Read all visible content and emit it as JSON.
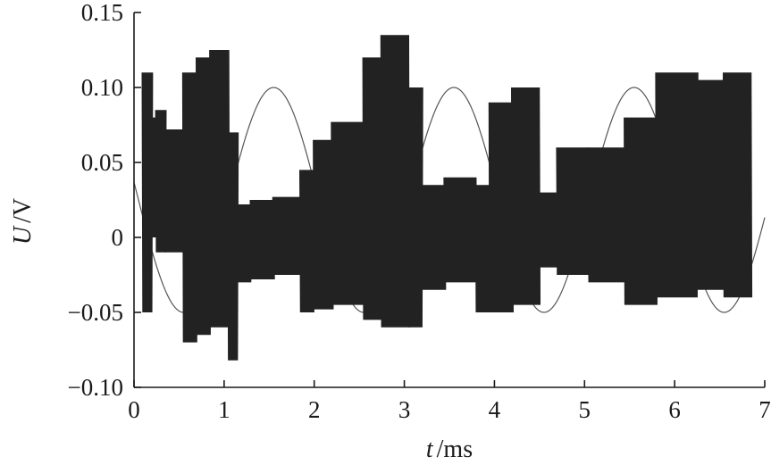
{
  "chart_data": {
    "type": "line",
    "title": "",
    "xlabel": {
      "variable": "t",
      "unit": "/ms"
    },
    "ylabel": {
      "variable": "U",
      "unit": "/V"
    },
    "xlim": [
      0,
      7
    ],
    "ylim": [
      -0.1,
      0.15
    ],
    "x_ticks": [
      0,
      1,
      2,
      3,
      4,
      5,
      6,
      7
    ],
    "x_tick_labels": [
      "0",
      "1",
      "2",
      "3",
      "4",
      "5",
      "6",
      "7"
    ],
    "y_ticks": [
      -0.1,
      -0.05,
      0,
      0.05,
      0.1,
      0.15
    ],
    "y_tick_labels": [
      "−0.10",
      "−0.05",
      "0",
      "0.05",
      "0.10",
      "0.15"
    ],
    "grid": false,
    "legend": "none",
    "colors": {
      "thin": "#555555",
      "thick": "#222222",
      "axis": "#1a1a1a"
    },
    "series": [
      {
        "style": "thin",
        "description_of_shape": "sinusoid, period 2 ms",
        "amplitude": 0.075,
        "offset": 0.025,
        "period_ms": 2.0,
        "peak_at_ms": 1.55,
        "x_range": [
          0,
          7
        ]
      },
      {
        "style": "thick-oscillation",
        "segments": [
          {
            "x0": 0.1,
            "x1": 0.2,
            "min": -0.05,
            "max": 0.11
          },
          {
            "x0": 0.2,
            "x1": 0.3,
            "min": 0.0,
            "max": 0.08
          },
          {
            "x0": 0.25,
            "x1": 0.35,
            "min": -0.01,
            "max": 0.085
          },
          {
            "x0": 0.35,
            "x1": 0.55,
            "min": -0.01,
            "max": 0.072
          },
          {
            "x0": 0.55,
            "x1": 0.7,
            "min": -0.07,
            "max": 0.11
          },
          {
            "x0": 0.7,
            "x1": 0.85,
            "min": -0.065,
            "max": 0.12
          },
          {
            "x0": 0.85,
            "x1": 1.05,
            "min": -0.06,
            "max": 0.125
          },
          {
            "x0": 1.05,
            "x1": 1.15,
            "min": -0.082,
            "max": 0.07
          },
          {
            "x0": 1.15,
            "x1": 1.3,
            "min": -0.03,
            "max": 0.022
          },
          {
            "x0": 1.3,
            "x1": 1.55,
            "min": -0.028,
            "max": 0.025
          },
          {
            "x0": 1.55,
            "x1": 1.85,
            "min": -0.025,
            "max": 0.027
          },
          {
            "x0": 1.85,
            "x1": 2.0,
            "min": -0.05,
            "max": 0.045
          },
          {
            "x0": 2.0,
            "x1": 2.2,
            "min": -0.048,
            "max": 0.065
          },
          {
            "x0": 2.2,
            "x1": 2.55,
            "min": -0.045,
            "max": 0.077
          },
          {
            "x0": 2.55,
            "x1": 2.75,
            "min": -0.055,
            "max": 0.12
          },
          {
            "x0": 2.75,
            "x1": 3.05,
            "min": -0.06,
            "max": 0.135
          },
          {
            "x0": 3.05,
            "x1": 3.2,
            "min": -0.06,
            "max": 0.1
          },
          {
            "x0": 3.2,
            "x1": 3.45,
            "min": -0.035,
            "max": 0.035
          },
          {
            "x0": 3.45,
            "x1": 3.8,
            "min": -0.03,
            "max": 0.04
          },
          {
            "x0": 3.8,
            "x1": 3.95,
            "min": -0.05,
            "max": 0.035
          },
          {
            "x0": 3.95,
            "x1": 4.2,
            "min": -0.05,
            "max": 0.09
          },
          {
            "x0": 4.2,
            "x1": 4.5,
            "min": -0.045,
            "max": 0.1
          },
          {
            "x0": 4.5,
            "x1": 4.7,
            "min": -0.02,
            "max": 0.03
          },
          {
            "x0": 4.7,
            "x1": 5.05,
            "min": -0.025,
            "max": 0.06
          },
          {
            "x0": 5.05,
            "x1": 5.45,
            "min": -0.03,
            "max": 0.06
          },
          {
            "x0": 5.45,
            "x1": 5.8,
            "min": -0.045,
            "max": 0.08
          },
          {
            "x0": 5.8,
            "x1": 6.25,
            "min": -0.04,
            "max": 0.11
          },
          {
            "x0": 6.25,
            "x1": 6.55,
            "min": -0.035,
            "max": 0.105
          },
          {
            "x0": 6.55,
            "x1": 6.85,
            "min": -0.04,
            "max": 0.11
          }
        ]
      }
    ]
  }
}
